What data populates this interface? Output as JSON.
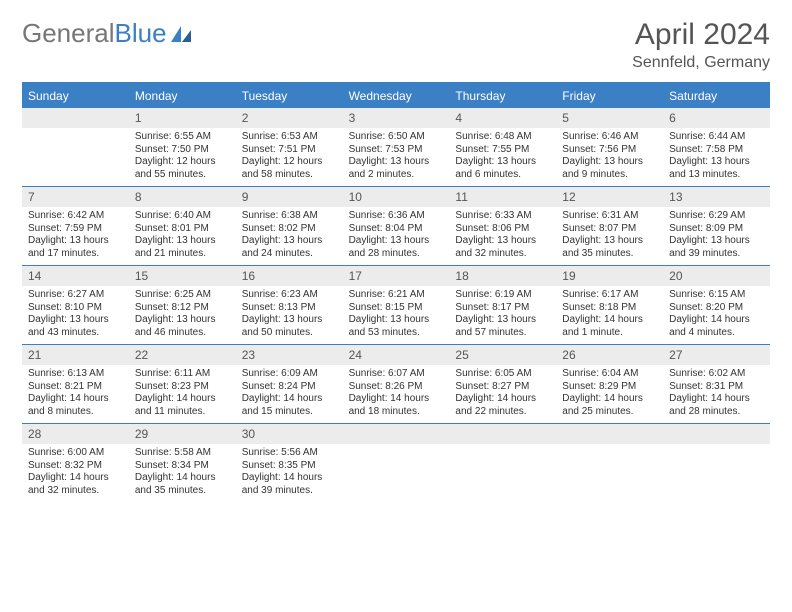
{
  "logo": {
    "text1": "General",
    "text2": "Blue"
  },
  "title": "April 2024",
  "location": "Sennfeld, Germany",
  "colors": {
    "accent": "#3b7fc4",
    "header_bg": "#3b7fc4",
    "numrow_bg": "#ececec",
    "text": "#333333",
    "muted": "#555555",
    "bg": "#ffffff"
  },
  "daynames": [
    "Sunday",
    "Monday",
    "Tuesday",
    "Wednesday",
    "Thursday",
    "Friday",
    "Saturday"
  ],
  "weeks": [
    [
      {
        "n": "",
        "sunrise": "",
        "sunset": "",
        "day1": "",
        "day2": ""
      },
      {
        "n": "1",
        "sunrise": "Sunrise: 6:55 AM",
        "sunset": "Sunset: 7:50 PM",
        "day1": "Daylight: 12 hours",
        "day2": "and 55 minutes."
      },
      {
        "n": "2",
        "sunrise": "Sunrise: 6:53 AM",
        "sunset": "Sunset: 7:51 PM",
        "day1": "Daylight: 12 hours",
        "day2": "and 58 minutes."
      },
      {
        "n": "3",
        "sunrise": "Sunrise: 6:50 AM",
        "sunset": "Sunset: 7:53 PM",
        "day1": "Daylight: 13 hours",
        "day2": "and 2 minutes."
      },
      {
        "n": "4",
        "sunrise": "Sunrise: 6:48 AM",
        "sunset": "Sunset: 7:55 PM",
        "day1": "Daylight: 13 hours",
        "day2": "and 6 minutes."
      },
      {
        "n": "5",
        "sunrise": "Sunrise: 6:46 AM",
        "sunset": "Sunset: 7:56 PM",
        "day1": "Daylight: 13 hours",
        "day2": "and 9 minutes."
      },
      {
        "n": "6",
        "sunrise": "Sunrise: 6:44 AM",
        "sunset": "Sunset: 7:58 PM",
        "day1": "Daylight: 13 hours",
        "day2": "and 13 minutes."
      }
    ],
    [
      {
        "n": "7",
        "sunrise": "Sunrise: 6:42 AM",
        "sunset": "Sunset: 7:59 PM",
        "day1": "Daylight: 13 hours",
        "day2": "and 17 minutes."
      },
      {
        "n": "8",
        "sunrise": "Sunrise: 6:40 AM",
        "sunset": "Sunset: 8:01 PM",
        "day1": "Daylight: 13 hours",
        "day2": "and 21 minutes."
      },
      {
        "n": "9",
        "sunrise": "Sunrise: 6:38 AM",
        "sunset": "Sunset: 8:02 PM",
        "day1": "Daylight: 13 hours",
        "day2": "and 24 minutes."
      },
      {
        "n": "10",
        "sunrise": "Sunrise: 6:36 AM",
        "sunset": "Sunset: 8:04 PM",
        "day1": "Daylight: 13 hours",
        "day2": "and 28 minutes."
      },
      {
        "n": "11",
        "sunrise": "Sunrise: 6:33 AM",
        "sunset": "Sunset: 8:06 PM",
        "day1": "Daylight: 13 hours",
        "day2": "and 32 minutes."
      },
      {
        "n": "12",
        "sunrise": "Sunrise: 6:31 AM",
        "sunset": "Sunset: 8:07 PM",
        "day1": "Daylight: 13 hours",
        "day2": "and 35 minutes."
      },
      {
        "n": "13",
        "sunrise": "Sunrise: 6:29 AM",
        "sunset": "Sunset: 8:09 PM",
        "day1": "Daylight: 13 hours",
        "day2": "and 39 minutes."
      }
    ],
    [
      {
        "n": "14",
        "sunrise": "Sunrise: 6:27 AM",
        "sunset": "Sunset: 8:10 PM",
        "day1": "Daylight: 13 hours",
        "day2": "and 43 minutes."
      },
      {
        "n": "15",
        "sunrise": "Sunrise: 6:25 AM",
        "sunset": "Sunset: 8:12 PM",
        "day1": "Daylight: 13 hours",
        "day2": "and 46 minutes."
      },
      {
        "n": "16",
        "sunrise": "Sunrise: 6:23 AM",
        "sunset": "Sunset: 8:13 PM",
        "day1": "Daylight: 13 hours",
        "day2": "and 50 minutes."
      },
      {
        "n": "17",
        "sunrise": "Sunrise: 6:21 AM",
        "sunset": "Sunset: 8:15 PM",
        "day1": "Daylight: 13 hours",
        "day2": "and 53 minutes."
      },
      {
        "n": "18",
        "sunrise": "Sunrise: 6:19 AM",
        "sunset": "Sunset: 8:17 PM",
        "day1": "Daylight: 13 hours",
        "day2": "and 57 minutes."
      },
      {
        "n": "19",
        "sunrise": "Sunrise: 6:17 AM",
        "sunset": "Sunset: 8:18 PM",
        "day1": "Daylight: 14 hours",
        "day2": "and 1 minute."
      },
      {
        "n": "20",
        "sunrise": "Sunrise: 6:15 AM",
        "sunset": "Sunset: 8:20 PM",
        "day1": "Daylight: 14 hours",
        "day2": "and 4 minutes."
      }
    ],
    [
      {
        "n": "21",
        "sunrise": "Sunrise: 6:13 AM",
        "sunset": "Sunset: 8:21 PM",
        "day1": "Daylight: 14 hours",
        "day2": "and 8 minutes."
      },
      {
        "n": "22",
        "sunrise": "Sunrise: 6:11 AM",
        "sunset": "Sunset: 8:23 PM",
        "day1": "Daylight: 14 hours",
        "day2": "and 11 minutes."
      },
      {
        "n": "23",
        "sunrise": "Sunrise: 6:09 AM",
        "sunset": "Sunset: 8:24 PM",
        "day1": "Daylight: 14 hours",
        "day2": "and 15 minutes."
      },
      {
        "n": "24",
        "sunrise": "Sunrise: 6:07 AM",
        "sunset": "Sunset: 8:26 PM",
        "day1": "Daylight: 14 hours",
        "day2": "and 18 minutes."
      },
      {
        "n": "25",
        "sunrise": "Sunrise: 6:05 AM",
        "sunset": "Sunset: 8:27 PM",
        "day1": "Daylight: 14 hours",
        "day2": "and 22 minutes."
      },
      {
        "n": "26",
        "sunrise": "Sunrise: 6:04 AM",
        "sunset": "Sunset: 8:29 PM",
        "day1": "Daylight: 14 hours",
        "day2": "and 25 minutes."
      },
      {
        "n": "27",
        "sunrise": "Sunrise: 6:02 AM",
        "sunset": "Sunset: 8:31 PM",
        "day1": "Daylight: 14 hours",
        "day2": "and 28 minutes."
      }
    ],
    [
      {
        "n": "28",
        "sunrise": "Sunrise: 6:00 AM",
        "sunset": "Sunset: 8:32 PM",
        "day1": "Daylight: 14 hours",
        "day2": "and 32 minutes."
      },
      {
        "n": "29",
        "sunrise": "Sunrise: 5:58 AM",
        "sunset": "Sunset: 8:34 PM",
        "day1": "Daylight: 14 hours",
        "day2": "and 35 minutes."
      },
      {
        "n": "30",
        "sunrise": "Sunrise: 5:56 AM",
        "sunset": "Sunset: 8:35 PM",
        "day1": "Daylight: 14 hours",
        "day2": "and 39 minutes."
      },
      {
        "n": "",
        "sunrise": "",
        "sunset": "",
        "day1": "",
        "day2": ""
      },
      {
        "n": "",
        "sunrise": "",
        "sunset": "",
        "day1": "",
        "day2": ""
      },
      {
        "n": "",
        "sunrise": "",
        "sunset": "",
        "day1": "",
        "day2": ""
      },
      {
        "n": "",
        "sunrise": "",
        "sunset": "",
        "day1": "",
        "day2": ""
      }
    ]
  ]
}
